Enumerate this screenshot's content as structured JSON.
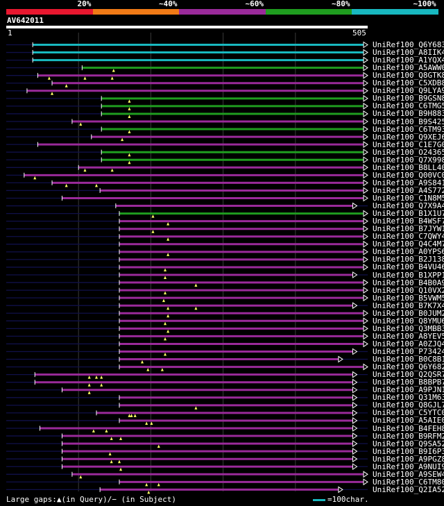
{
  "scale": {
    "colors": [
      "#e8172f",
      "#f07a16",
      "#9a2a9a",
      "#1f9d1f",
      "#18b8c0"
    ],
    "labels": [
      "20%",
      "~40%",
      "~60%",
      "~80%",
      "~100%"
    ]
  },
  "query": {
    "name": "AV642011",
    "start": "1",
    "end": "505",
    "length": 505
  },
  "hits": [
    {
      "name": "UniRef100_Q6Y683",
      "start": 37,
      "end": 505,
      "color": "#18b8c0",
      "gaps": []
    },
    {
      "name": "UniRef100_A8IIK4",
      "start": 37,
      "end": 505,
      "color": "#18b8c0",
      "gaps": []
    },
    {
      "name": "UniRef100_A1YQX4",
      "start": 37,
      "end": 505,
      "color": "#18b8c0",
      "gaps": []
    },
    {
      "name": "UniRef100_A5AWW0",
      "start": 106,
      "end": 505,
      "color": "#1f9d1f",
      "gaps": [
        150
      ]
    },
    {
      "name": "UniRef100_Q8GTK8",
      "start": 44,
      "end": 505,
      "color": "#9a2a9a",
      "gaps": [
        60,
        110,
        148
      ]
    },
    {
      "name": "UniRef100_C5XDB8",
      "start": 64,
      "end": 505,
      "color": "#9a2a9a",
      "gaps": [
        84
      ]
    },
    {
      "name": "UniRef100_Q9LYA9",
      "start": 29,
      "end": 505,
      "color": "#9a2a9a",
      "gaps": [
        64
      ]
    },
    {
      "name": "UniRef100_B9GSN8",
      "start": 133,
      "end": 505,
      "color": "#1f9d1f",
      "gaps": [
        172
      ]
    },
    {
      "name": "UniRef100_C6TMG5",
      "start": 133,
      "end": 505,
      "color": "#1f9d1f",
      "gaps": [
        172
      ]
    },
    {
      "name": "UniRef100_B9H883",
      "start": 133,
      "end": 505,
      "color": "#1f9d1f",
      "gaps": [
        172
      ]
    },
    {
      "name": "UniRef100_B9S425",
      "start": 92,
      "end": 505,
      "color": "#9a2a9a",
      "gaps": [
        104
      ]
    },
    {
      "name": "UniRef100_C6TM93",
      "start": 133,
      "end": 505,
      "color": "#1f9d1f",
      "gaps": [
        172
      ]
    },
    {
      "name": "UniRef100_Q9XEJ6",
      "start": 119,
      "end": 505,
      "color": "#9a2a9a",
      "gaps": [
        162
      ]
    },
    {
      "name": "UniRef100_C1E7G0",
      "start": 44,
      "end": 505,
      "color": "#9a2a9a",
      "gaps": []
    },
    {
      "name": "UniRef100_O24365",
      "start": 133,
      "end": 505,
      "color": "#1f9d1f",
      "gaps": [
        172
      ]
    },
    {
      "name": "UniRef100_Q7X998",
      "start": 133,
      "end": 505,
      "color": "#1f9d1f",
      "gaps": [
        172
      ]
    },
    {
      "name": "UniRef100_B8LL40",
      "start": 101,
      "end": 505,
      "color": "#9a2a9a",
      "gaps": [
        110,
        148
      ]
    },
    {
      "name": "UniRef100_Q00VC0",
      "start": 25,
      "end": 505,
      "color": "#9a2a9a",
      "gaps": [
        40
      ]
    },
    {
      "name": "UniRef100_A9S841",
      "start": 64,
      "end": 505,
      "color": "#9a2a9a",
      "gaps": [
        84,
        126
      ]
    },
    {
      "name": "UniRef100_A4S772",
      "start": 131,
      "end": 505,
      "color": "#9a2a9a",
      "gaps": []
    },
    {
      "name": "UniRef100_C1N8M5",
      "start": 78,
      "end": 505,
      "color": "#9a2a9a",
      "gaps": []
    },
    {
      "name": "UniRef100_Q7X9A4",
      "start": 153,
      "end": 490,
      "color": "#9a2a9a",
      "gaps": []
    },
    {
      "name": "UniRef100_B1X1U7",
      "start": 158,
      "end": 505,
      "color": "#1f9d1f",
      "gaps": [
        205
      ]
    },
    {
      "name": "UniRef100_B4WSF7",
      "start": 158,
      "end": 505,
      "color": "#9a2a9a",
      "gaps": [
        226
      ]
    },
    {
      "name": "UniRef100_B7JYW1",
      "start": 158,
      "end": 505,
      "color": "#9a2a9a",
      "gaps": [
        205
      ]
    },
    {
      "name": "UniRef100_C7QWY4",
      "start": 158,
      "end": 505,
      "color": "#9a2a9a",
      "gaps": [
        226
      ]
    },
    {
      "name": "UniRef100_Q4C4M7",
      "start": 158,
      "end": 505,
      "color": "#9a2a9a",
      "gaps": []
    },
    {
      "name": "UniRef100_A0YPS6",
      "start": 158,
      "end": 505,
      "color": "#9a2a9a",
      "gaps": [
        226
      ]
    },
    {
      "name": "UniRef100_B2J138",
      "start": 158,
      "end": 505,
      "color": "#9a2a9a",
      "gaps": []
    },
    {
      "name": "UniRef100_B4VU46",
      "start": 158,
      "end": 505,
      "color": "#9a2a9a",
      "gaps": [
        222
      ]
    },
    {
      "name": "UniRef100_B1XPP1",
      "start": 158,
      "end": 490,
      "color": "#9a2a9a",
      "gaps": [
        222
      ]
    },
    {
      "name": "UniRef100_B4B0A9",
      "start": 158,
      "end": 505,
      "color": "#9a2a9a",
      "gaps": [
        265
      ]
    },
    {
      "name": "UniRef100_Q10VX2",
      "start": 158,
      "end": 505,
      "color": "#9a2a9a",
      "gaps": [
        222
      ]
    },
    {
      "name": "UniRef100_B5VWM5",
      "start": 158,
      "end": 505,
      "color": "#9a2a9a",
      "gaps": [
        220
      ]
    },
    {
      "name": "UniRef100_B7K7X4",
      "start": 158,
      "end": 490,
      "color": "#9a2a9a",
      "gaps": [
        226,
        265
      ]
    },
    {
      "name": "UniRef100_B0JUM2",
      "start": 158,
      "end": 505,
      "color": "#9a2a9a",
      "gaps": [
        226
      ]
    },
    {
      "name": "UniRef100_Q8YMU6",
      "start": 158,
      "end": 505,
      "color": "#9a2a9a",
      "gaps": [
        222
      ]
    },
    {
      "name": "UniRef100_Q3MBB3",
      "start": 158,
      "end": 505,
      "color": "#9a2a9a",
      "gaps": [
        226
      ]
    },
    {
      "name": "UniRef100_A8YEV5",
      "start": 158,
      "end": 505,
      "color": "#9a2a9a",
      "gaps": [
        222
      ]
    },
    {
      "name": "UniRef100_A0ZJQ4",
      "start": 158,
      "end": 505,
      "color": "#9a2a9a",
      "gaps": []
    },
    {
      "name": "UniRef100_P73424",
      "start": 158,
      "end": 490,
      "color": "#9a2a9a",
      "gaps": [
        222
      ]
    },
    {
      "name": "UniRef100_B0C8B1",
      "start": 158,
      "end": 470,
      "color": "#9a2a9a",
      "gaps": [
        190
      ]
    },
    {
      "name": "UniRef100_Q6Y682",
      "start": 158,
      "end": 505,
      "color": "#9a2a9a",
      "gaps": [
        218,
        198
      ]
    },
    {
      "name": "UniRef100_Q2QSR7",
      "start": 40,
      "end": 490,
      "color": "#9a2a9a",
      "gaps": [
        126,
        116,
        133
      ]
    },
    {
      "name": "UniRef100_B8BPB7",
      "start": 40,
      "end": 490,
      "color": "#9a2a9a",
      "gaps": [
        133,
        116
      ]
    },
    {
      "name": "UniRef100_A9PJN1",
      "start": 78,
      "end": 490,
      "color": "#9a2a9a",
      "gaps": [
        116
      ]
    },
    {
      "name": "UniRef100_Q31M63",
      "start": 158,
      "end": 490,
      "color": "#9a2a9a",
      "gaps": []
    },
    {
      "name": "UniRef100_Q8GJL7",
      "start": 158,
      "end": 490,
      "color": "#9a2a9a",
      "gaps": [
        265
      ]
    },
    {
      "name": "UniRef100_C5YTC0",
      "start": 126,
      "end": 490,
      "color": "#9a2a9a",
      "gaps": [
        180,
        175,
        172
      ]
    },
    {
      "name": "UniRef100_A5AIE0",
      "start": 158,
      "end": 490,
      "color": "#9a2a9a",
      "gaps": [
        196,
        203
      ]
    },
    {
      "name": "UniRef100_B4FEH8",
      "start": 47,
      "end": 490,
      "color": "#9a2a9a",
      "gaps": [
        122,
        140
      ]
    },
    {
      "name": "UniRef100_B9RFM2",
      "start": 78,
      "end": 490,
      "color": "#9a2a9a",
      "gaps": [
        147,
        160
      ]
    },
    {
      "name": "UniRef100_Q9SA52",
      "start": 78,
      "end": 490,
      "color": "#9a2a9a",
      "gaps": [
        213
      ]
    },
    {
      "name": "UniRef100_B9I6P3",
      "start": 78,
      "end": 490,
      "color": "#9a2a9a",
      "gaps": [
        145
      ]
    },
    {
      "name": "UniRef100_A9PGZ8",
      "start": 78,
      "end": 490,
      "color": "#9a2a9a",
      "gaps": [
        147,
        158
      ]
    },
    {
      "name": "UniRef100_A9NUI9",
      "start": 78,
      "end": 490,
      "color": "#9a2a9a",
      "gaps": [
        160
      ]
    },
    {
      "name": "UniRef100_A9SEW4",
      "start": 92,
      "end": 505,
      "color": "#9a2a9a",
      "gaps": [
        104
      ]
    },
    {
      "name": "UniRef100_C6TM80",
      "start": 158,
      "end": 505,
      "color": "#9a2a9a",
      "gaps": [
        213,
        196
      ]
    },
    {
      "name": "UniRef100_Q2IA52",
      "start": 131,
      "end": 470,
      "color": "#9a2a9a",
      "gaps": [
        199
      ]
    }
  ],
  "footer": {
    "gaps_label": "Large gaps:",
    "gaps_desc": "(in Query)/− (in Subject)",
    "legend": "=100char.",
    "legend_color": "#18b8c0"
  }
}
